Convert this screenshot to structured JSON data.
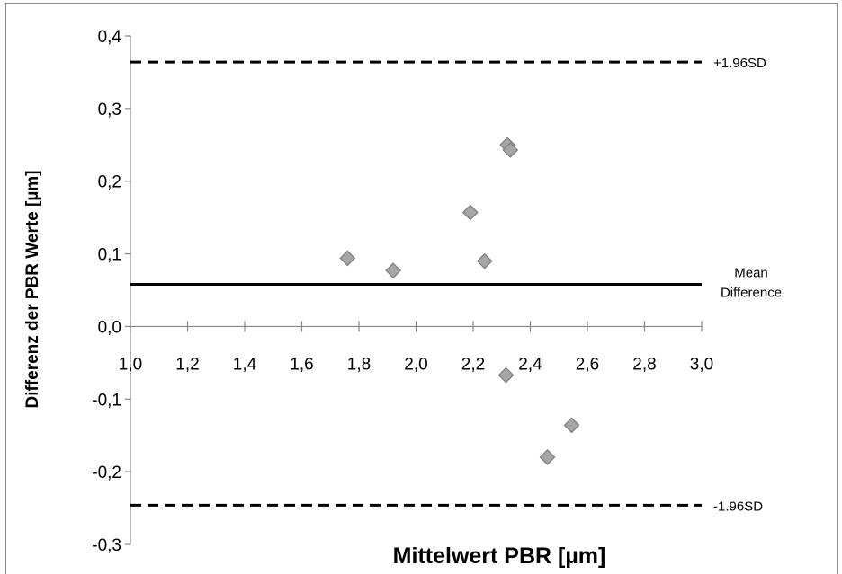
{
  "chart_data": {
    "type": "scatter",
    "title": "",
    "xlabel": "Mittelwert PBR [µm]",
    "ylabel": "Differenz der PBR Werte [µm]",
    "xlim": [
      1.0,
      3.0
    ],
    "ylim": [
      -0.3,
      0.4
    ],
    "x_ticks": [
      1.0,
      1.2,
      1.4,
      1.6,
      1.8,
      2.0,
      2.2,
      2.4,
      2.6,
      2.8,
      3.0
    ],
    "x_tick_labels": [
      "1,0",
      "1,2",
      "1,4",
      "1,6",
      "1,8",
      "2,0",
      "2,2",
      "2,4",
      "2,6",
      "2,8",
      "3,0"
    ],
    "y_ticks": [
      0.4,
      0.3,
      0.2,
      0.1,
      0.0,
      -0.1,
      -0.2,
      -0.3
    ],
    "y_tick_labels": [
      "0,4",
      "0,3",
      "0,2",
      "0,1",
      "0,0",
      "-0,1",
      "-0,2",
      "-0,3"
    ],
    "grid": false,
    "legend": "none",
    "marker": {
      "shape": "diamond",
      "fill": "#a6a6a6",
      "stroke": "#7f7f7f"
    },
    "points": [
      {
        "x": 1.76,
        "y": 0.094
      },
      {
        "x": 1.92,
        "y": 0.077
      },
      {
        "x": 2.19,
        "y": 0.157
      },
      {
        "x": 2.24,
        "y": 0.09
      },
      {
        "x": 2.32,
        "y": 0.25
      },
      {
        "x": 2.33,
        "y": 0.243
      },
      {
        "x": 2.315,
        "y": -0.067
      },
      {
        "x": 2.46,
        "y": -0.18
      },
      {
        "x": 2.545,
        "y": -0.136
      }
    ],
    "reference_lines": [
      {
        "name": "mean",
        "y": 0.058,
        "style": "solid",
        "color": "#000000",
        "label_lines": [
          "Mean",
          "Difference"
        ]
      },
      {
        "name": "upper-loa",
        "y": 0.364,
        "style": "dashed",
        "color": "#000000",
        "label_lines": [
          "+1.96SD"
        ]
      },
      {
        "name": "lower-loa",
        "y": -0.246,
        "style": "dashed",
        "color": "#000000",
        "label_lines": [
          "-1.96SD"
        ]
      }
    ]
  }
}
